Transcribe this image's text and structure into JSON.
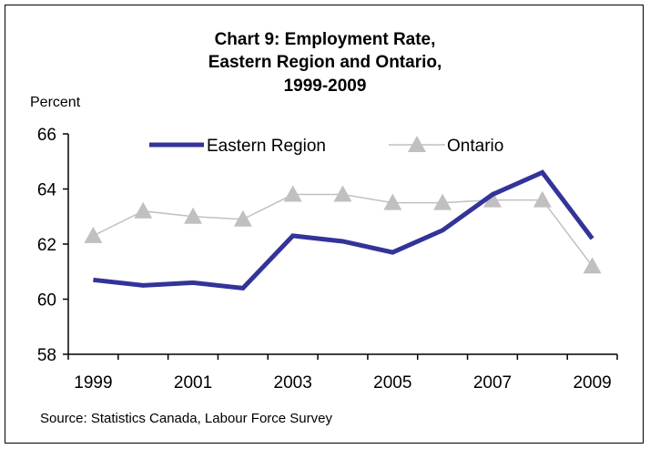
{
  "chart_data": {
    "type": "line",
    "title_lines": [
      "Chart 9: Employment Rate,",
      "Eastern Region and Ontario,",
      "1999-2009"
    ],
    "ylabel": "Percent",
    "source": "Source: Statistics Canada, Labour Force Survey",
    "x": [
      1999,
      2000,
      2001,
      2002,
      2003,
      2004,
      2005,
      2006,
      2007,
      2008,
      2009
    ],
    "x_tick_labels": [
      "1999",
      "2001",
      "2003",
      "2005",
      "2007",
      "2009"
    ],
    "y_ticks": [
      "66",
      "64",
      "62",
      "60",
      "58"
    ],
    "ylim": [
      58,
      66
    ],
    "grid": false,
    "legend_position": "top",
    "series": [
      {
        "name": "Eastern Region",
        "color": "#333399",
        "marker": "none",
        "values": [
          60.7,
          60.5,
          60.6,
          60.4,
          62.3,
          62.1,
          61.7,
          62.5,
          63.8,
          64.6,
          62.2
        ]
      },
      {
        "name": "Ontario",
        "color": "#c0c0c0",
        "marker": "triangle",
        "values": [
          62.3,
          63.2,
          63.0,
          62.9,
          63.8,
          63.8,
          63.5,
          63.5,
          63.6,
          63.6,
          61.2
        ]
      }
    ]
  }
}
